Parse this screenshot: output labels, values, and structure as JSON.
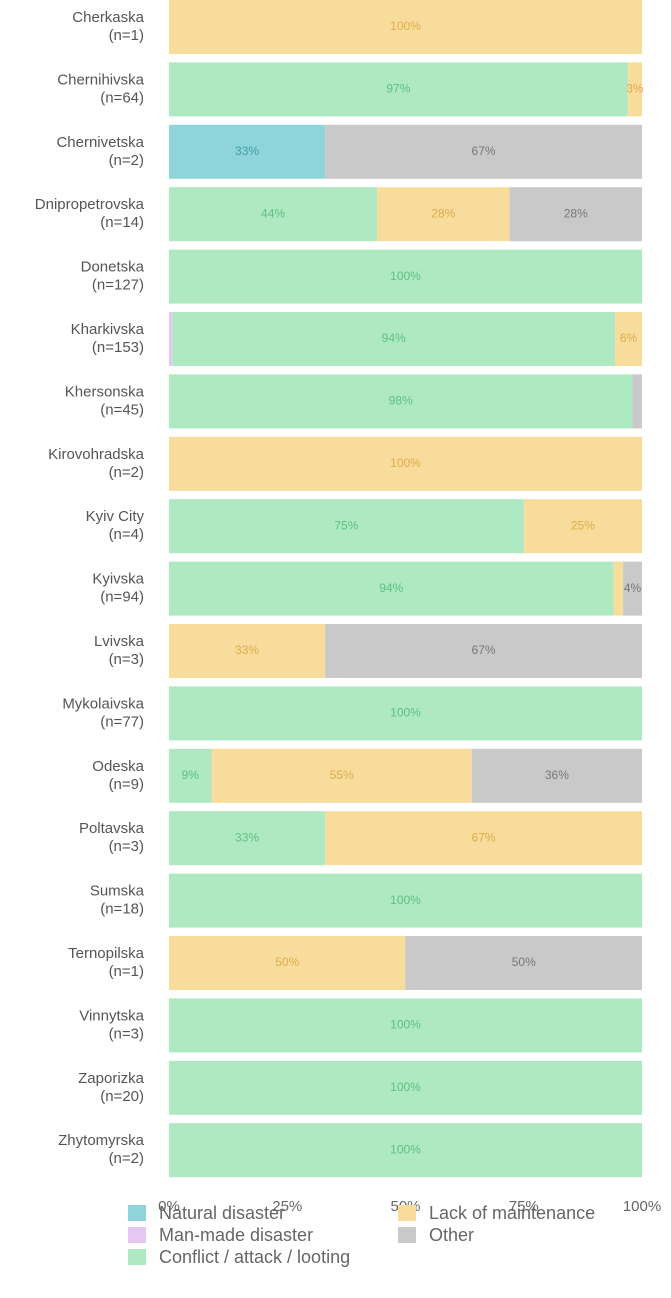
{
  "chart_data": {
    "type": "stacked-barh",
    "categories": [
      "Cherkaska\n(n=1)",
      "Chernihivska\n(n=64)",
      "Chernivetska\n(n=2)",
      "Dnipropetrovska\n(n=14)",
      "Donetska\n(n=127)",
      "Kharkivska\n(n=153)",
      "Khersonska\n(n=45)",
      "Kirovohradska\n(n=2)",
      "Kyiv City\n(n=4)",
      "Kyivska\n(n=94)",
      "Lvivska\n(n=3)",
      "Mykolaivska\n(n=77)",
      "Odeska\n(n=9)",
      "Poltavska\n(n=3)",
      "Sumska\n(n=18)",
      "Ternopilska\n(n=1)",
      "Vinnytska\n(n=3)",
      "Zaporizka\n(n=20)",
      "Zhytomyrska\n(n=2)"
    ],
    "series": [
      {
        "name": "Natural disaster",
        "color": "#8fd4da",
        "values": [
          0,
          0,
          33,
          0,
          0,
          0,
          0,
          0,
          0,
          0,
          0,
          0,
          0,
          0,
          0,
          0,
          0,
          0,
          0
        ],
        "value_labels": [
          null,
          null,
          "33%",
          null,
          null,
          null,
          null,
          null,
          null,
          null,
          null,
          null,
          null,
          null,
          null,
          null,
          null,
          null,
          null
        ]
      },
      {
        "name": "Man-made disaster",
        "color": "#e4c8f2",
        "values": [
          0,
          0,
          0,
          0,
          0,
          0.7,
          0,
          0,
          0,
          0,
          0,
          0,
          0,
          0,
          0,
          0,
          0,
          0,
          0
        ],
        "value_labels": [
          null,
          null,
          null,
          null,
          null,
          null,
          null,
          null,
          null,
          null,
          null,
          null,
          null,
          null,
          null,
          null,
          null,
          null,
          null
        ]
      },
      {
        "name": "Conflict / attack / looting",
        "color": "#aee9c2",
        "values": [
          0,
          97,
          0,
          44,
          100,
          93.6,
          98,
          0,
          75,
          94,
          0,
          100,
          9,
          33,
          100,
          0,
          100,
          100,
          100
        ],
        "value_labels": [
          null,
          "97%",
          null,
          "44%",
          "100%",
          "94%",
          "98%",
          null,
          "75%",
          "94%",
          null,
          "100%",
          "9%",
          "33%",
          "100%",
          null,
          "100%",
          "100%",
          "100%"
        ]
      },
      {
        "name": "Lack of maintenance",
        "color": "#f8dc9c",
        "values": [
          100,
          3,
          0,
          28,
          0,
          5.7,
          0,
          100,
          25,
          2,
          33,
          0,
          55,
          67,
          0,
          50,
          0,
          0,
          0
        ],
        "value_labels": [
          "100%",
          "3%",
          null,
          "28%",
          null,
          "6%",
          null,
          "100%",
          "25%",
          null,
          "33%",
          null,
          "55%",
          "67%",
          null,
          "50%",
          null,
          null,
          null
        ]
      },
      {
        "name": "Other",
        "color": "#c9c9c9",
        "values": [
          0,
          0,
          67,
          28,
          0,
          0,
          2,
          0,
          0,
          4,
          67,
          0,
          36,
          0,
          0,
          50,
          0,
          0,
          0
        ],
        "value_labels": [
          null,
          null,
          "67%",
          "28%",
          null,
          null,
          null,
          null,
          null,
          "4%",
          "67%",
          null,
          "36%",
          null,
          null,
          "50%",
          null,
          null,
          null
        ]
      }
    ],
    "xlim": [
      0,
      100
    ],
    "xticks": [
      {
        "value": 0,
        "label": "0%"
      },
      {
        "value": 25,
        "label": "25%"
      },
      {
        "value": 50,
        "label": "50%"
      },
      {
        "value": 75,
        "label": "75%"
      },
      {
        "value": 100,
        "label": "100%"
      }
    ],
    "legend": "bottom"
  }
}
